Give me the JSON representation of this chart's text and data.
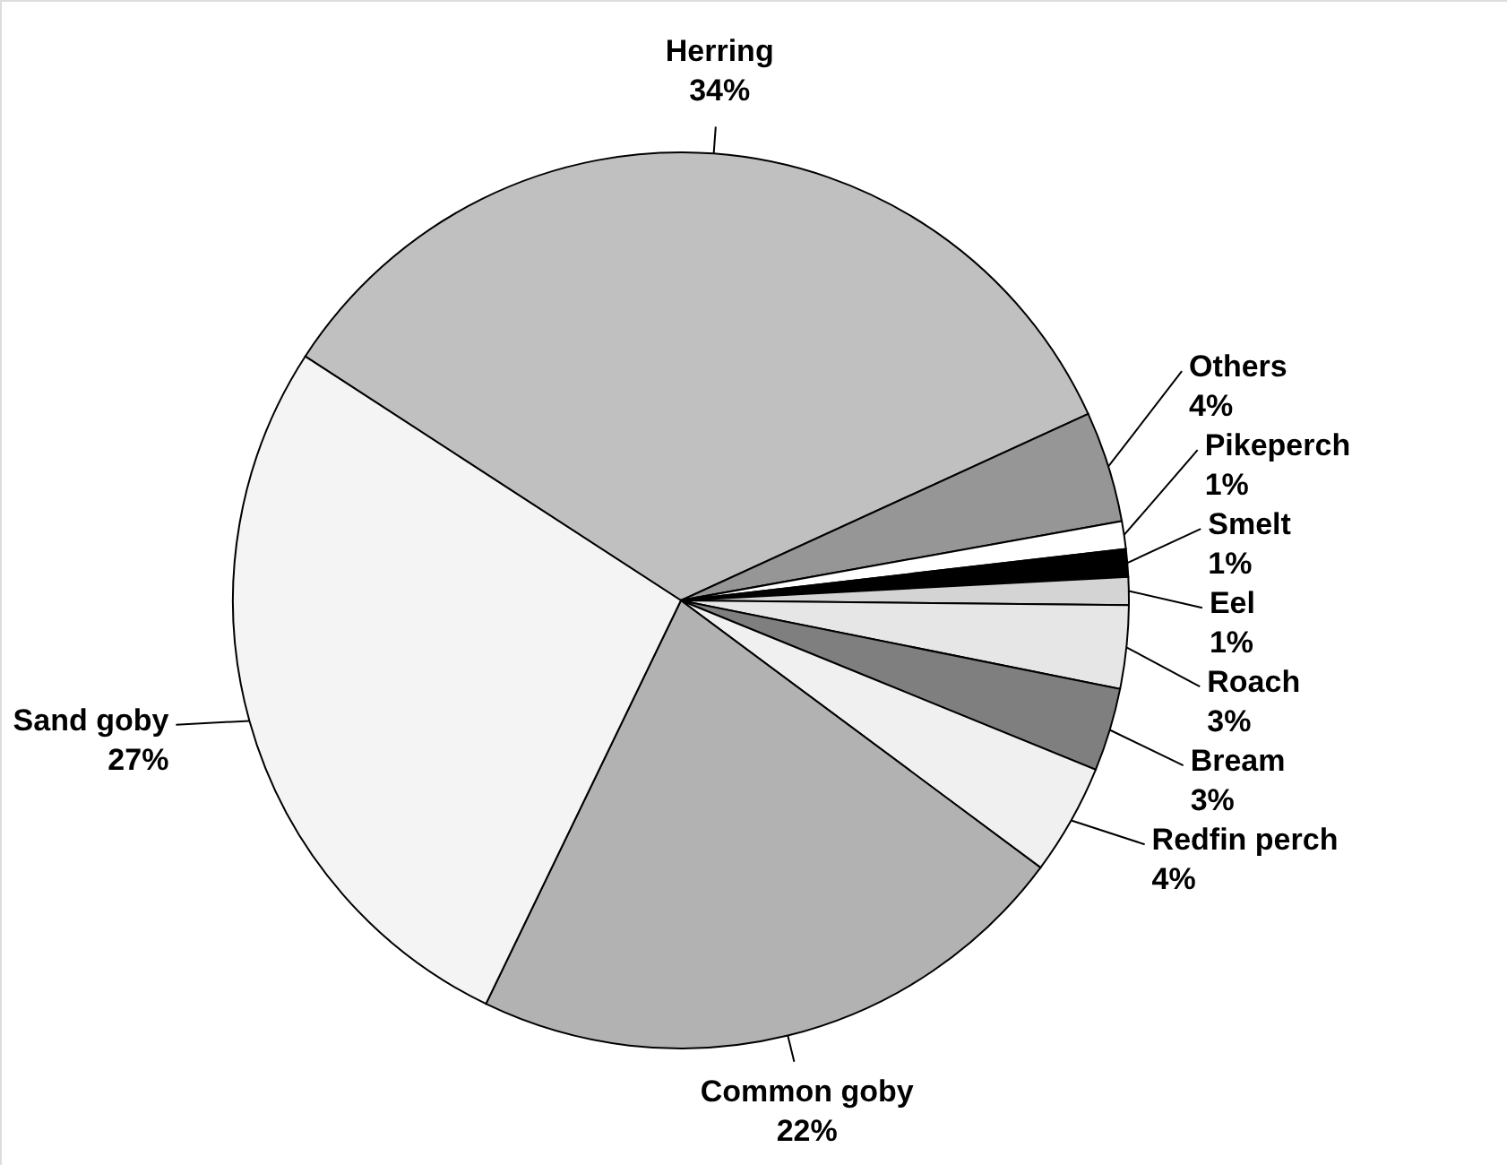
{
  "chart_data": {
    "type": "pie",
    "categories": [
      "Herring",
      "Others",
      "Pikeperch",
      "Smelt",
      "Eel",
      "Roach",
      "Bream",
      "Redfin perch",
      "Common goby",
      "Sand goby"
    ],
    "values": [
      34,
      4,
      1,
      1,
      1,
      3,
      3,
      4,
      22,
      27
    ],
    "value_labels": [
      "34%",
      "4%",
      "1%",
      "1%",
      "1%",
      "3%",
      "3%",
      "4%",
      "22%",
      "27%"
    ],
    "colors": [
      "#c0c0c0",
      "#969696",
      "#ffffff",
      "#000000",
      "#d4d4d4",
      "#e6e6e6",
      "#7f7f7f",
      "#f0f0f0",
      "#b2b2b2",
      "#f4f4f4"
    ]
  }
}
